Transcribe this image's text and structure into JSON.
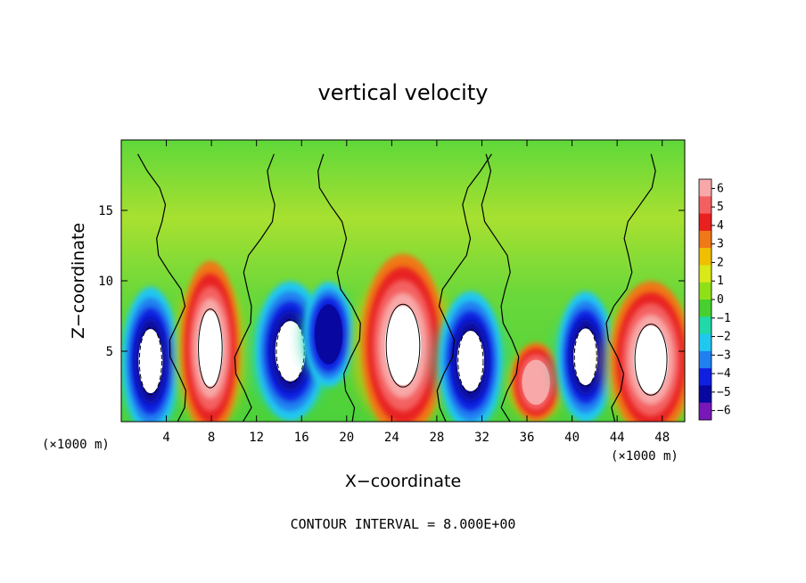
{
  "chart_data": {
    "type": "heatmap",
    "title": "vertical velocity",
    "xlabel": "X−coordinate",
    "ylabel": "Z−coordinate",
    "x_unit_label": "(×1000 m)",
    "x_ticks": [
      4,
      8,
      12,
      16,
      20,
      24,
      28,
      32,
      36,
      40,
      44,
      48
    ],
    "y_ticks": [
      5,
      10,
      15
    ],
    "xlim": [
      0,
      50
    ],
    "ylim": [
      0,
      20
    ],
    "colorbar": {
      "ticks": [
        "6",
        "5",
        "4",
        "3",
        "2",
        "1",
        "0",
        "−1",
        "−2",
        "−3",
        "−4",
        "−5",
        "−6"
      ],
      "colors": [
        "#f8a8a8",
        "#f46060",
        "#e82020",
        "#f07818",
        "#f0c000",
        "#d8e818",
        "#90e018",
        "#48d030",
        "#20d8a8",
        "#20c8f0",
        "#2080f0",
        "#1020e0",
        "#0808a0",
        "#7818b8"
      ]
    },
    "footer": "CONTOUR INTERVAL = 8.000E+00",
    "cells": [
      {
        "x": 2.6,
        "z": 4.3,
        "sign": "down",
        "peak": 8,
        "w": 1.6,
        "h": 3.4
      },
      {
        "x": 7.9,
        "z": 5.2,
        "sign": "up",
        "peak": 16,
        "w": 1.7,
        "h": 4.0
      },
      {
        "x": 15.0,
        "z": 5.0,
        "sign": "down",
        "peak": 8,
        "w": 2.0,
        "h": 3.2
      },
      {
        "x": 18.4,
        "z": 6.2,
        "sign": "down",
        "peak": 5,
        "w": 1.4,
        "h": 2.4
      },
      {
        "x": 25.0,
        "z": 5.4,
        "sign": "up",
        "peak": 16,
        "w": 2.4,
        "h": 4.2
      },
      {
        "x": 31.0,
        "z": 4.3,
        "sign": "down",
        "peak": 8,
        "w": 1.8,
        "h": 3.2
      },
      {
        "x": 36.8,
        "z": 2.8,
        "sign": "up",
        "peak": 5,
        "w": 1.4,
        "h": 1.8
      },
      {
        "x": 41.2,
        "z": 4.6,
        "sign": "down",
        "peak": 8,
        "w": 1.6,
        "h": 3.0
      },
      {
        "x": 47.0,
        "z": 4.4,
        "sign": "up",
        "peak": 16,
        "w": 2.3,
        "h": 3.6
      }
    ]
  }
}
